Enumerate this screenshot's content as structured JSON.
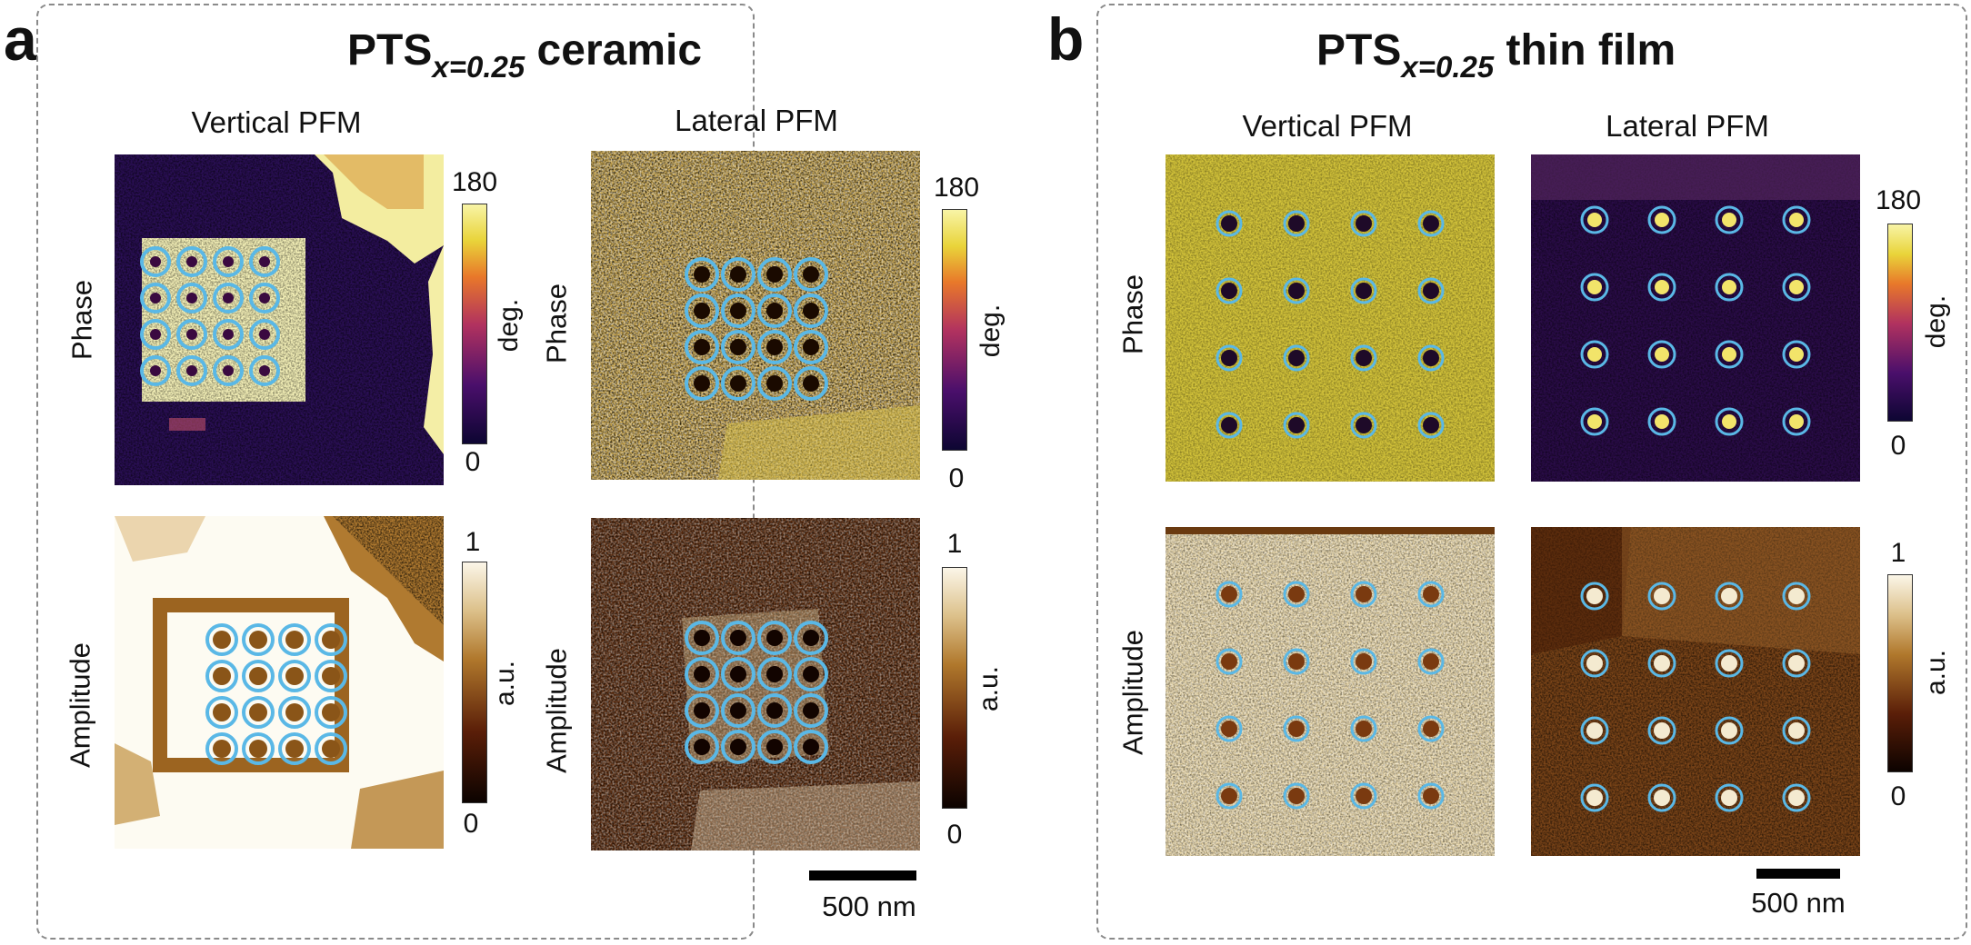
{
  "panels": [
    {
      "letter": "a",
      "title_main": "PTS",
      "title_sub": "x=0.25",
      "title_rest": " ceramic",
      "col_labels": [
        "Vertical PFM",
        "Lateral PFM"
      ],
      "row_labels": [
        "Phase",
        "Amplitude"
      ],
      "phase_colorbar": {
        "max": "180",
        "min": "0",
        "unit": "deg."
      },
      "amplitude_colorbar": {
        "max": "1",
        "min": "0",
        "unit": "a.u."
      },
      "scale_bar": "500 nm"
    },
    {
      "letter": "b",
      "title_main": "PTS",
      "title_sub": "x=0.25",
      "title_rest": " thin film",
      "col_labels": [
        "Vertical PFM",
        "Lateral PFM"
      ],
      "row_labels": [
        "Phase",
        "Amplitude"
      ],
      "phase_colorbar": {
        "max": "180",
        "min": "0",
        "unit": "deg."
      },
      "amplitude_colorbar": {
        "max": "1",
        "min": "0",
        "unit": "a.u."
      },
      "scale_bar": "500 nm"
    }
  ],
  "colors": {
    "circle": "#5ab8e6",
    "phase_high": "#f8f4a6",
    "phase_low": "#0b0530",
    "amp_high": "#fbf6e8",
    "amp_low": "#0a0200"
  }
}
